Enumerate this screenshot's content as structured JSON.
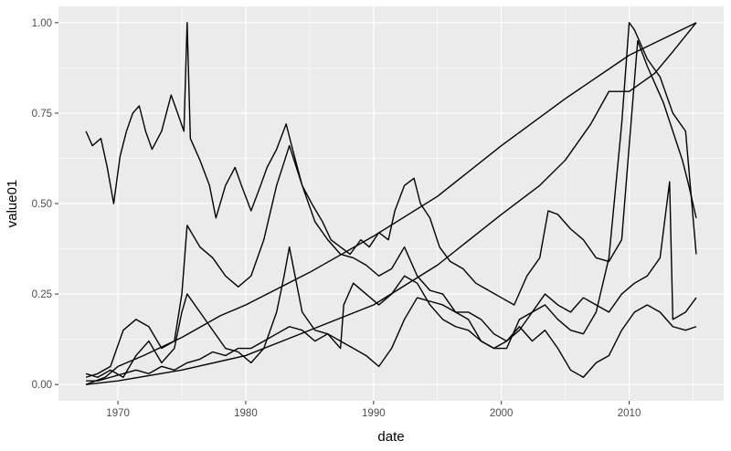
{
  "chart_data": {
    "type": "line",
    "xlabel": "date",
    "ylabel": "value01",
    "x_scale": "date",
    "xlim": [
      "1967-07-01",
      "2015-04-01"
    ],
    "ylim": [
      0,
      1
    ],
    "x_ticks": [
      "1970-01-01",
      "1980-01-01",
      "1990-01-01",
      "2000-01-01",
      "2010-01-01"
    ],
    "x_tick_labels": [
      "1970",
      "1980",
      "1990",
      "2000",
      "2010"
    ],
    "y_ticks": [
      0,
      0.25,
      0.5,
      0.75,
      1
    ],
    "y_tick_labels": [
      "0.00",
      "0.25",
      "0.50",
      "0.75",
      "1.00"
    ],
    "grid": true,
    "legend": "none",
    "colors": {
      "panel": "#ebebeb",
      "grid": "#ffffff",
      "line": "#000000",
      "text": "#4d4d4d"
    },
    "series": [
      {
        "x": [
          "1967-07-01",
          "1969-01-01",
          "1970-01-01",
          "1972-01-01",
          "1975-01-01",
          "1978-01-01",
          "1980-01-01",
          "1985-01-01",
          "1990-01-01",
          "1995-01-01",
          "2000-01-01",
          "2005-01-01",
          "2010-01-01",
          "2015-04-01"
        ],
        "y": [
          0.0,
          0.02,
          0.05,
          0.08,
          0.13,
          0.19,
          0.22,
          0.31,
          0.41,
          0.52,
          0.66,
          0.79,
          0.91,
          1.0
        ]
      },
      {
        "x": [
          "1967-07-01",
          "1970-01-01",
          "1975-01-01",
          "1980-01-01",
          "1985-01-01",
          "1990-01-01",
          "1995-01-01",
          "2000-01-01",
          "2003-01-01",
          "2005-01-01",
          "2007-01-01",
          "2008-06-01",
          "2010-01-01",
          "2012-01-01",
          "2013-06-01",
          "2015-04-01"
        ],
        "y": [
          0.0,
          0.01,
          0.04,
          0.08,
          0.15,
          0.22,
          0.33,
          0.47,
          0.55,
          0.62,
          0.72,
          0.81,
          0.81,
          0.86,
          0.92,
          1.0
        ]
      },
      {
        "x": [
          "1967-07-01",
          "1968-01-01",
          "1968-09-01",
          "1969-03-01",
          "1969-09-01",
          "1970-03-01",
          "1970-09-01",
          "1971-03-01",
          "1971-09-01",
          "1972-03-01",
          "1972-09-01",
          "1973-06-01",
          "1974-03-01",
          "1974-09-01",
          "1975-03-01",
          "1975-06-01",
          "1975-09-01",
          "1976-06-01",
          "1977-03-01",
          "1977-09-01",
          "1978-06-01",
          "1979-03-01",
          "1979-09-01",
          "1980-06-01",
          "1981-03-01",
          "1981-09-01",
          "1982-06-01",
          "1983-03-01",
          "1983-09-01",
          "1984-06-01",
          "1985-03-01",
          "1986-01-01",
          "1986-09-01",
          "1987-06-01",
          "1988-03-01",
          "1989-01-01",
          "1989-09-01",
          "1990-06-01",
          "1991-03-01",
          "1991-09-01",
          "1992-06-01",
          "1993-03-01",
          "1993-09-01",
          "1994-06-01",
          "1995-03-01",
          "1996-01-01",
          "1997-01-01",
          "1998-01-01",
          "1999-01-01",
          "2000-01-01",
          "2001-01-01",
          "2002-01-01",
          "2003-01-01",
          "2003-09-01",
          "2004-06-01",
          "2005-06-01",
          "2006-06-01",
          "2007-06-01",
          "2008-06-01",
          "2009-06-01",
          "2010-01-01",
          "2010-09-01",
          "2011-06-01",
          "2012-03-01",
          "2012-09-01",
          "2013-06-01",
          "2014-03-01",
          "2014-09-01",
          "2015-04-01"
        ],
        "y": [
          0.7,
          0.66,
          0.68,
          0.6,
          0.5,
          0.63,
          0.7,
          0.75,
          0.77,
          0.7,
          0.65,
          0.7,
          0.8,
          0.75,
          0.7,
          1.0,
          0.68,
          0.62,
          0.55,
          0.46,
          0.55,
          0.6,
          0.55,
          0.48,
          0.55,
          0.6,
          0.65,
          0.72,
          0.65,
          0.55,
          0.5,
          0.45,
          0.4,
          0.38,
          0.36,
          0.4,
          0.38,
          0.42,
          0.4,
          0.48,
          0.55,
          0.57,
          0.5,
          0.46,
          0.38,
          0.34,
          0.32,
          0.28,
          0.26,
          0.24,
          0.22,
          0.3,
          0.35,
          0.48,
          0.47,
          0.43,
          0.4,
          0.35,
          0.34,
          0.4,
          0.66,
          0.95,
          0.88,
          0.82,
          0.78,
          0.7,
          0.62,
          0.55,
          0.46
        ]
      },
      {
        "x": [
          "1967-07-01",
          "1968-06-01",
          "1969-06-01",
          "1970-06-01",
          "1971-06-01",
          "1972-06-01",
          "1973-06-01",
          "1974-06-01",
          "1975-01-01",
          "1975-06-01",
          "1976-06-01",
          "1977-06-01",
          "1978-06-01",
          "1979-06-01",
          "1980-06-01",
          "1981-06-01",
          "1982-06-01",
          "1983-06-01",
          "1984-06-01",
          "1985-06-01",
          "1986-06-01",
          "1987-06-01",
          "1988-06-01",
          "1989-06-01",
          "1990-06-01",
          "1991-06-01",
          "1992-06-01",
          "1993-06-01",
          "1994-06-01",
          "1995-06-01",
          "1996-06-01",
          "1997-06-01",
          "1998-06-01",
          "1999-06-01",
          "2000-06-01",
          "2001-06-01",
          "2002-06-01",
          "2003-06-01",
          "2004-06-01",
          "2005-06-01",
          "2006-06-01",
          "2007-06-01",
          "2008-06-01",
          "2009-06-01",
          "2010-01-01",
          "2010-06-01",
          "2011-06-01",
          "2012-06-01",
          "2013-06-01",
          "2014-06-01",
          "2015-04-01"
        ],
        "y": [
          0.02,
          0.03,
          0.05,
          0.15,
          0.18,
          0.16,
          0.1,
          0.12,
          0.25,
          0.44,
          0.38,
          0.35,
          0.3,
          0.27,
          0.3,
          0.4,
          0.55,
          0.66,
          0.55,
          0.45,
          0.4,
          0.36,
          0.35,
          0.33,
          0.3,
          0.32,
          0.38,
          0.3,
          0.26,
          0.25,
          0.2,
          0.18,
          0.12,
          0.1,
          0.1,
          0.18,
          0.2,
          0.22,
          0.18,
          0.15,
          0.14,
          0.2,
          0.35,
          0.72,
          1.0,
          0.98,
          0.9,
          0.85,
          0.75,
          0.7,
          0.36
        ]
      },
      {
        "x": [
          "1967-07-01",
          "1968-06-01",
          "1969-06-01",
          "1970-06-01",
          "1971-06-01",
          "1972-06-01",
          "1973-06-01",
          "1974-06-01",
          "1975-01-01",
          "1975-06-01",
          "1976-06-01",
          "1977-06-01",
          "1978-06-01",
          "1979-06-01",
          "1980-06-01",
          "1981-06-01",
          "1982-06-01",
          "1983-01-01",
          "1983-06-01",
          "1984-06-01",
          "1985-06-01",
          "1986-06-01",
          "1987-06-01",
          "1988-06-01",
          "1989-06-01",
          "1990-06-01",
          "1991-06-01",
          "1992-06-01",
          "1993-06-01",
          "1994-06-01",
          "1995-06-01",
          "1996-06-01",
          "1997-06-01",
          "1998-06-01",
          "1999-06-01",
          "2000-06-01",
          "2001-06-01",
          "2002-06-01",
          "2003-06-01",
          "2004-06-01",
          "2005-06-01",
          "2006-06-01",
          "2007-06-01",
          "2008-06-01",
          "2009-06-01",
          "2010-06-01",
          "2011-06-01",
          "2012-06-01",
          "2013-03-01",
          "2013-06-01",
          "2014-06-01",
          "2015-04-01"
        ],
        "y": [
          0.03,
          0.02,
          0.04,
          0.02,
          0.08,
          0.12,
          0.06,
          0.1,
          0.2,
          0.25,
          0.2,
          0.15,
          0.1,
          0.09,
          0.06,
          0.1,
          0.2,
          0.3,
          0.38,
          0.2,
          0.15,
          0.14,
          0.12,
          0.1,
          0.08,
          0.05,
          0.1,
          0.18,
          0.24,
          0.23,
          0.22,
          0.2,
          0.2,
          0.18,
          0.14,
          0.12,
          0.15,
          0.2,
          0.25,
          0.22,
          0.2,
          0.24,
          0.22,
          0.2,
          0.25,
          0.28,
          0.3,
          0.35,
          0.56,
          0.18,
          0.2,
          0.24
        ]
      },
      {
        "x": [
          "1967-07-01",
          "1968-06-01",
          "1969-06-01",
          "1970-06-01",
          "1971-06-01",
          "1972-06-01",
          "1973-06-01",
          "1974-06-01",
          "1975-06-01",
          "1976-06-01",
          "1977-06-01",
          "1978-06-01",
          "1979-06-01",
          "1980-06-01",
          "1981-06-01",
          "1982-06-01",
          "1983-06-01",
          "1984-06-01",
          "1985-06-01",
          "1986-06-01",
          "1987-06-01",
          "1987-09-01",
          "1988-06-01",
          "1989-06-01",
          "1990-06-01",
          "1991-06-01",
          "1992-06-01",
          "1993-06-01",
          "1994-06-01",
          "1995-06-01",
          "1996-06-01",
          "1997-06-01",
          "1998-06-01",
          "1999-06-01",
          "2000-06-01",
          "2001-06-01",
          "2002-06-01",
          "2003-06-01",
          "2004-06-01",
          "2005-06-01",
          "2006-06-01",
          "2007-06-01",
          "2008-06-01",
          "2009-06-01",
          "2010-06-01",
          "2011-06-01",
          "2012-06-01",
          "2013-06-01",
          "2014-06-01",
          "2015-04-01"
        ],
        "y": [
          0.01,
          0.01,
          0.02,
          0.03,
          0.04,
          0.03,
          0.05,
          0.04,
          0.06,
          0.07,
          0.09,
          0.08,
          0.1,
          0.1,
          0.12,
          0.14,
          0.16,
          0.15,
          0.12,
          0.14,
          0.1,
          0.22,
          0.28,
          0.25,
          0.22,
          0.25,
          0.3,
          0.28,
          0.22,
          0.18,
          0.16,
          0.15,
          0.12,
          0.1,
          0.12,
          0.16,
          0.12,
          0.15,
          0.1,
          0.04,
          0.02,
          0.06,
          0.08,
          0.15,
          0.2,
          0.22,
          0.2,
          0.16,
          0.15,
          0.16
        ]
      }
    ]
  }
}
